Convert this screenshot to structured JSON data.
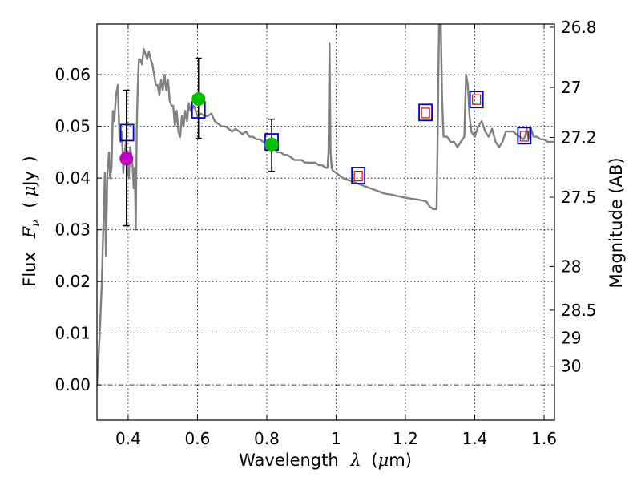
{
  "chart_data": {
    "type": "line",
    "title": "",
    "xlabel": {
      "prefix": "Wavelength",
      "symbol": "λ",
      "unit_open": "(",
      "unit_mu": "μ",
      "unit_rest": "m)"
    },
    "ylabel": {
      "prefix": "Flux",
      "symbol": "F",
      "sub": "ν",
      "unit_open": "(",
      "unit_mu": "μ",
      "unit_rest": "Jy",
      "unit_close": ")"
    },
    "y2label": "Magnitude (AB)",
    "xlim": [
      0.31,
      1.63
    ],
    "ylim": [
      -0.0068,
      0.0698
    ],
    "grid": true,
    "x_ticks": [
      {
        "v": 0.4,
        "label": "0.4"
      },
      {
        "v": 0.6,
        "label": "0.6"
      },
      {
        "v": 0.8,
        "label": "0.8"
      },
      {
        "v": 1.0,
        "label": "1"
      },
      {
        "v": 1.2,
        "label": "1.2"
      },
      {
        "v": 1.4,
        "label": "1.4"
      },
      {
        "v": 1.6,
        "label": "1.6"
      }
    ],
    "y_ticks": [
      {
        "v": 0.0,
        "label": "0.00"
      },
      {
        "v": 0.01,
        "label": "0.01"
      },
      {
        "v": 0.02,
        "label": "0.02"
      },
      {
        "v": 0.03,
        "label": "0.03"
      },
      {
        "v": 0.04,
        "label": "0.04"
      },
      {
        "v": 0.05,
        "label": "0.05"
      },
      {
        "v": 0.06,
        "label": "0.06"
      }
    ],
    "y2_ticks": [
      {
        "mag": 26.8,
        "label": "26.8"
      },
      {
        "mag": 27.0,
        "label": "27"
      },
      {
        "mag": 27.2,
        "label": "27.2"
      },
      {
        "mag": 27.5,
        "label": "27.5"
      },
      {
        "mag": 28.0,
        "label": "28"
      },
      {
        "mag": 28.5,
        "label": "28.5"
      },
      {
        "mag": 29.0,
        "label": "29"
      },
      {
        "mag": 30.0,
        "label": "30"
      }
    ],
    "colors": {
      "sed": "#808080",
      "magenta": "#bf00bf",
      "green": "#00c000",
      "blue_square": "#0000cc",
      "red_square": "#e00000",
      "errorbar": "#000000",
      "zero_line": "#000000"
    },
    "series": [
      {
        "name": "model SED",
        "kind": "line",
        "x": [
          0.31,
          0.318,
          0.324,
          0.33,
          0.333,
          0.336,
          0.34,
          0.345,
          0.348,
          0.352,
          0.356,
          0.36,
          0.365,
          0.37,
          0.375,
          0.378,
          0.382,
          0.386,
          0.39,
          0.394,
          0.398,
          0.402,
          0.406,
          0.41,
          0.413,
          0.416,
          0.419,
          0.422,
          0.425,
          0.428,
          0.431,
          0.435,
          0.44,
          0.445,
          0.45,
          0.455,
          0.46,
          0.465,
          0.47,
          0.475,
          0.48,
          0.485,
          0.49,
          0.495,
          0.5,
          0.505,
          0.51,
          0.515,
          0.52,
          0.525,
          0.53,
          0.535,
          0.54,
          0.545,
          0.55,
          0.555,
          0.56,
          0.565,
          0.57,
          0.575,
          0.58,
          0.585,
          0.59,
          0.595,
          0.6,
          0.61,
          0.62,
          0.63,
          0.64,
          0.65,
          0.66,
          0.67,
          0.68,
          0.69,
          0.7,
          0.71,
          0.72,
          0.73,
          0.74,
          0.75,
          0.76,
          0.77,
          0.78,
          0.79,
          0.8,
          0.81,
          0.82,
          0.83,
          0.84,
          0.85,
          0.86,
          0.87,
          0.88,
          0.89,
          0.9,
          0.91,
          0.92,
          0.93,
          0.94,
          0.95,
          0.96,
          0.97,
          0.975,
          0.978,
          0.981,
          0.984,
          0.987,
          0.99,
          1.0,
          1.02,
          1.04,
          1.06,
          1.08,
          1.1,
          1.12,
          1.14,
          1.16,
          1.18,
          1.2,
          1.22,
          1.24,
          1.26,
          1.27,
          1.28,
          1.285,
          1.29,
          1.293,
          1.297,
          1.302,
          1.306,
          1.31,
          1.32,
          1.33,
          1.34,
          1.35,
          1.36,
          1.37,
          1.375,
          1.38,
          1.385,
          1.39,
          1.4,
          1.41,
          1.42,
          1.425,
          1.43,
          1.44,
          1.45,
          1.46,
          1.47,
          1.48,
          1.49,
          1.5,
          1.51,
          1.52,
          1.53,
          1.54,
          1.545,
          1.55,
          1.555,
          1.56,
          1.57,
          1.58,
          1.59,
          1.6,
          1.61,
          1.62,
          1.63
        ],
        "y": [
          0.0,
          0.01,
          0.02,
          0.035,
          0.041,
          0.025,
          0.041,
          0.045,
          0.04,
          0.042,
          0.053,
          0.051,
          0.056,
          0.058,
          0.048,
          0.047,
          0.049,
          0.041,
          0.045,
          0.047,
          0.042,
          0.04,
          0.046,
          0.044,
          0.042,
          0.038,
          0.042,
          0.03,
          0.05,
          0.058,
          0.063,
          0.063,
          0.062,
          0.065,
          0.064,
          0.063,
          0.0645,
          0.063,
          0.062,
          0.06,
          0.058,
          0.058,
          0.056,
          0.059,
          0.057,
          0.06,
          0.057,
          0.059,
          0.055,
          0.054,
          0.054,
          0.05,
          0.053,
          0.049,
          0.048,
          0.052,
          0.05,
          0.053,
          0.051,
          0.0545,
          0.053,
          0.0535,
          0.054,
          0.053,
          0.052,
          0.0525,
          0.052,
          0.052,
          0.0525,
          0.051,
          0.0505,
          0.05,
          0.05,
          0.0495,
          0.049,
          0.0495,
          0.049,
          0.0485,
          0.049,
          0.048,
          0.048,
          0.0475,
          0.0475,
          0.047,
          0.0465,
          0.046,
          0.046,
          0.045,
          0.045,
          0.0445,
          0.0445,
          0.044,
          0.0435,
          0.0435,
          0.0435,
          0.043,
          0.043,
          0.043,
          0.043,
          0.0425,
          0.0425,
          0.042,
          0.042,
          0.045,
          0.066,
          0.045,
          0.042,
          0.0415,
          0.041,
          0.04,
          0.0395,
          0.039,
          0.0385,
          0.038,
          0.0375,
          0.037,
          0.0368,
          0.0365,
          0.0362,
          0.036,
          0.0358,
          0.0355,
          0.0345,
          0.034,
          0.034,
          0.034,
          0.048,
          0.07,
          0.07,
          0.055,
          0.048,
          0.048,
          0.047,
          0.047,
          0.046,
          0.047,
          0.048,
          0.06,
          0.058,
          0.052,
          0.049,
          0.048,
          0.05,
          0.051,
          0.05,
          0.049,
          0.048,
          0.0495,
          0.047,
          0.046,
          0.047,
          0.049,
          0.049,
          0.049,
          0.0485,
          0.048,
          0.0475,
          0.048,
          0.0495,
          0.0475,
          0.05,
          0.048,
          0.048,
          0.0475,
          0.0475,
          0.047,
          0.047,
          0.047
        ]
      },
      {
        "name": "photometry (magenta)",
        "kind": "points",
        "points": [
          {
            "x": 0.395,
            "y": 0.0438
          }
        ]
      },
      {
        "name": "photometry (green)",
        "kind": "points",
        "points": [
          {
            "x": 0.603,
            "y": 0.0553
          },
          {
            "x": 0.814,
            "y": 0.0465
          }
        ]
      },
      {
        "name": "error bars",
        "kind": "errorbar",
        "bars": [
          {
            "x": 0.395,
            "ylow": 0.0308,
            "yhigh": 0.057
          },
          {
            "x": 0.603,
            "ylow": 0.0477,
            "yhigh": 0.0632
          },
          {
            "x": 0.814,
            "ylow": 0.0413,
            "yhigh": 0.0514
          }
        ]
      },
      {
        "name": "model fluxes (blue squares)",
        "kind": "squares",
        "points": [
          {
            "x": 0.397,
            "y": 0.0488
          },
          {
            "x": 0.603,
            "y": 0.0532
          },
          {
            "x": 0.814,
            "y": 0.047
          },
          {
            "x": 1.064,
            "y": 0.0405
          },
          {
            "x": 1.258,
            "y": 0.0527
          },
          {
            "x": 1.405,
            "y": 0.0552
          },
          {
            "x": 1.543,
            "y": 0.0482
          }
        ]
      },
      {
        "name": "observed fluxes (red squares)",
        "kind": "squares",
        "points": [
          {
            "x": 1.064,
            "y": 0.0404
          },
          {
            "x": 1.258,
            "y": 0.0526
          },
          {
            "x": 1.405,
            "y": 0.0552
          },
          {
            "x": 1.543,
            "y": 0.0481
          }
        ]
      }
    ]
  }
}
